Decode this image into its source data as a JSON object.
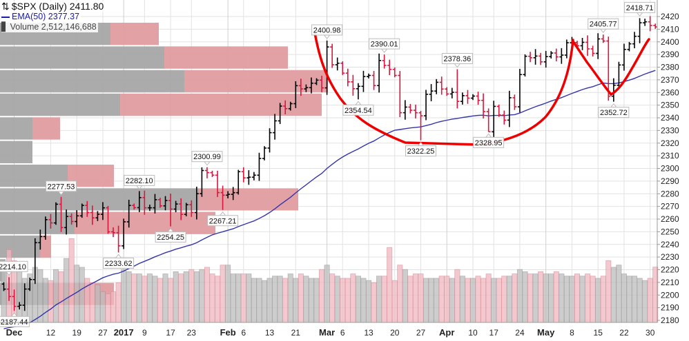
{
  "legend": {
    "symbol_line": "$SPX (Daily) 2411.80",
    "ema_line": "EMA(50) 2377.37",
    "volume_line": "Volume 2,512,146,688"
  },
  "colors": {
    "up_bar": "#000000",
    "down_bar": "#dc143c",
    "ema": "#3333aa",
    "vbp_up": "#a6a6a6",
    "vbp_down": "#e09ca0",
    "vol_up": "#bdbdbd",
    "vol_down": "#efb8c0",
    "annotation_curve": "#ee0000"
  },
  "chart_data": {
    "type": "ohlc",
    "title": "$SPX (Daily)",
    "ylim": [
      2175,
      2425
    ],
    "y_ticks": [
      2180,
      2190,
      2200,
      2210,
      2220,
      2230,
      2240,
      2250,
      2260,
      2270,
      2280,
      2290,
      2300,
      2310,
      2320,
      2330,
      2340,
      2350,
      2360,
      2370,
      2380,
      2390,
      2400,
      2410,
      2420
    ],
    "x_ticks": [
      {
        "label": "Dec",
        "index": 2,
        "month": true
      },
      {
        "label": "12",
        "index": 9
      },
      {
        "label": "19",
        "index": 14
      },
      {
        "label": "27",
        "index": 19
      },
      {
        "label": "2017",
        "index": 23,
        "month": true
      },
      {
        "label": "9",
        "index": 27
      },
      {
        "label": "17",
        "index": 32
      },
      {
        "label": "23",
        "index": 36
      },
      {
        "label": "Feb",
        "index": 43,
        "month": true
      },
      {
        "label": "6",
        "index": 46
      },
      {
        "label": "13",
        "index": 51
      },
      {
        "label": "21",
        "index": 56
      },
      {
        "label": "Mar",
        "index": 62,
        "month": true
      },
      {
        "label": "6",
        "index": 65
      },
      {
        "label": "13",
        "index": 70
      },
      {
        "label": "20",
        "index": 75
      },
      {
        "label": "27",
        "index": 80
      },
      {
        "label": "Apr",
        "index": 85,
        "month": true
      },
      {
        "label": "10",
        "index": 90
      },
      {
        "label": "17",
        "index": 94
      },
      {
        "label": "24",
        "index": 99
      },
      {
        "label": "May",
        "index": 104,
        "month": true
      },
      {
        "label": "8",
        "index": 109
      },
      {
        "label": "15",
        "index": 114
      },
      {
        "label": "22",
        "index": 119
      },
      {
        "label": "30",
        "index": 124
      }
    ],
    "close": [
      2204.66,
      2198.81,
      2191.08,
      2191.95,
      2204.71,
      2212.23,
      2241.35,
      2246.19,
      2259.53,
      2256.96,
      2271.72,
      2253.28,
      2262.03,
      2258.07,
      2262.53,
      2270.76,
      2265.18,
      2260.96,
      2263.79,
      2268.88,
      2249.92,
      2249.26,
      2238.83,
      2257.83,
      2270.75,
      2269.0,
      2276.98,
      2268.9,
      2268.9,
      2275.32,
      2270.44,
      2274.64,
      2267.89,
      2271.89,
      2263.69,
      2271.31,
      2265.2,
      2280.07,
      2298.37,
      2296.68,
      2294.69,
      2280.9,
      2278.87,
      2279.55,
      2280.85,
      2297.42,
      2292.56,
      2293.08,
      2294.67,
      2307.87,
      2316.1,
      2328.25,
      2337.58,
      2349.25,
      2347.22,
      2351.16,
      2365.38,
      2362.82,
      2363.81,
      2367.34,
      2369.75,
      2363.64,
      2395.96,
      2381.92,
      2383.12,
      2375.31,
      2368.39,
      2362.98,
      2364.87,
      2372.6,
      2373.47,
      2365.45,
      2385.26,
      2381.38,
      2378.25,
      2373.47,
      2344.02,
      2348.45,
      2345.96,
      2343.98,
      2341.59,
      2358.57,
      2361.13,
      2368.06,
      2362.72,
      2358.84,
      2360.16,
      2352.95,
      2357.49,
      2355.54,
      2357.16,
      2353.78,
      2344.93,
      2328.95,
      2349.01,
      2342.19,
      2338.17,
      2355.84,
      2348.69,
      2374.15,
      2388.61,
      2387.45,
      2388.77,
      2384.2,
      2388.33,
      2391.17,
      2388.13,
      2389.52,
      2399.29,
      2399.38,
      2396.92,
      2399.63,
      2394.44,
      2390.9,
      2402.32,
      2400.67,
      2357.03,
      2365.72,
      2381.73,
      2394.02,
      2398.42,
      2404.39,
      2415.07,
      2415.82,
      2412.91,
      2411.8
    ],
    "volume_billions": [
      2.4,
      3.3,
      2.8,
      2.3,
      2.0,
      2.2,
      2.5,
      2.4,
      2.0,
      1.9,
      2.4,
      2.3,
      2.9,
      3.8,
      2.6,
      2.5,
      2.0,
      1.8,
      1.7,
      1.4,
      1.3,
      1.4,
      1.8,
      2.4,
      2.3,
      2.2,
      2.2,
      2.1,
      2.2,
      2.1,
      2.0,
      2.2,
      2.0,
      2.3,
      2.2,
      2.3,
      2.4,
      2.3,
      2.4,
      2.5,
      2.2,
      2.1,
      2.6,
      2.6,
      2.2,
      2.2,
      2.2,
      2.2,
      2.0,
      2.0,
      1.9,
      2.0,
      2.1,
      2.1,
      2.0,
      2.2,
      2.0,
      2.2,
      2.1,
      2.0,
      2.0,
      2.4,
      2.6,
      2.2,
      2.1,
      2.0,
      2.0,
      2.2,
      2.1,
      2.0,
      1.9,
      1.8,
      2.1,
      2.1,
      3.4,
      1.9,
      2.6,
      2.4,
      2.1,
      2.2,
      2.2,
      2.0,
      2.0,
      2.0,
      2.1,
      2.1,
      2.0,
      2.4,
      2.1,
      2.0,
      2.0,
      2.1,
      2.0,
      2.2,
      2.0,
      2.0,
      2.1,
      2.1,
      2.2,
      2.4,
      2.3,
      2.2,
      2.2,
      2.3,
      2.2,
      2.2,
      2.3,
      2.2,
      2.1,
      2.1,
      2.2,
      2.1,
      2.2,
      2.1,
      2.0,
      2.1,
      2.8,
      2.5,
      2.6,
      2.2,
      2.1,
      2.1,
      2.0,
      1.9,
      2.0,
      2.51
    ],
    "ema_period": 50,
    "ema_seed": 2172,
    "ema_last": 2377.37,
    "annotations": [
      {
        "index": 1,
        "kind": "high",
        "value": 2214.1,
        "label": "2214.10"
      },
      {
        "index": 2,
        "kind": "low",
        "value": 2187.44,
        "label": "2187.44"
      },
      {
        "index": 11,
        "kind": "high",
        "value": 2277.53,
        "label": "2277.53"
      },
      {
        "index": 22,
        "kind": "low",
        "value": 2233.62,
        "label": "2233.62"
      },
      {
        "index": 26,
        "kind": "high",
        "value": 2282.1,
        "label": "2282.10"
      },
      {
        "index": 32,
        "kind": "low",
        "value": 2254.25,
        "label": "2254.25"
      },
      {
        "index": 39,
        "kind": "high",
        "value": 2300.99,
        "label": "2300.99"
      },
      {
        "index": 42,
        "kind": "low",
        "value": 2267.21,
        "label": "2267.21"
      },
      {
        "index": 62,
        "kind": "high",
        "value": 2400.98,
        "label": "2400.98"
      },
      {
        "index": 68,
        "kind": "low",
        "value": 2354.54,
        "label": "2354.54"
      },
      {
        "index": 73,
        "kind": "high",
        "value": 2390.01,
        "label": "2390.01"
      },
      {
        "index": 80,
        "kind": "low",
        "value": 2322.25,
        "label": "2322.25"
      },
      {
        "index": 87,
        "kind": "high",
        "value": 2378.36,
        "label": "2378.36"
      },
      {
        "index": 93,
        "kind": "low",
        "value": 2328.95,
        "label": "2328.95"
      },
      {
        "index": 115,
        "kind": "high",
        "value": 2405.77,
        "label": "2405.77"
      },
      {
        "index": 117,
        "kind": "low",
        "value": 2352.72,
        "label": "2352.72"
      },
      {
        "index": 122,
        "kind": "high",
        "value": 2418.71,
        "label": "2418.71"
      }
    ],
    "volume_by_price": {
      "units": "relative",
      "rows": [
        {
          "low": 2396.4,
          "high": 2415.1,
          "up": 160,
          "down": 70
        },
        {
          "low": 2377.7,
          "high": 2396.4,
          "up": 238,
          "down": 179
        },
        {
          "low": 2359.1,
          "high": 2377.7,
          "up": 267,
          "down": 208
        },
        {
          "low": 2340.4,
          "high": 2359.1,
          "up": 174,
          "down": 292
        },
        {
          "low": 2321.7,
          "high": 2340.4,
          "up": 47,
          "down": 40
        },
        {
          "low": 2303.0,
          "high": 2321.7,
          "up": 47,
          "down": 0
        },
        {
          "low": 2284.3,
          "high": 2303.0,
          "up": 98,
          "down": 67
        },
        {
          "low": 2265.7,
          "high": 2284.3,
          "up": 288,
          "down": 144
        },
        {
          "low": 2247.0,
          "high": 2265.7,
          "up": 108,
          "down": 204
        },
        {
          "low": 2228.3,
          "high": 2247.0,
          "up": 58,
          "down": 16
        },
        {
          "low": 2209.6,
          "high": 2228.3,
          "up": 8,
          "down": 0
        },
        {
          "low": 2191.0,
          "high": 2209.6,
          "up": 72,
          "down": 93
        }
      ]
    }
  }
}
